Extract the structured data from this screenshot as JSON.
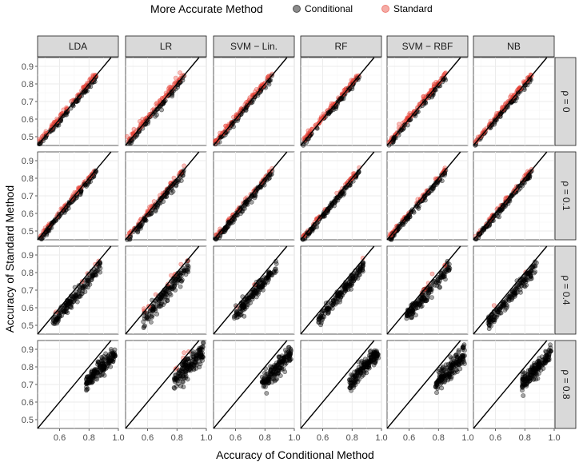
{
  "chart_data": {
    "type": "scatter",
    "xlabel": "Accuracy of Conditional Method",
    "ylabel": "Accuracy of Standard Method",
    "legend": {
      "title": "More Accurate Method",
      "position": "top",
      "entries": [
        {
          "label": "Conditional",
          "color": "#000000"
        },
        {
          "label": "Standard",
          "color": "#e8463a"
        }
      ]
    },
    "columns": [
      "LDA",
      "LR",
      "SVM − Lin.",
      "RF",
      "SVM − RBF",
      "NB"
    ],
    "rows": [
      "ρ = 0",
      "ρ = 0.1",
      "ρ = 0.4",
      "ρ = 0.8"
    ],
    "xlim": [
      0.45,
      1.0
    ],
    "ylim": [
      0.45,
      0.95
    ],
    "xticks": [
      0.6,
      0.8,
      1.0
    ],
    "xtick_labels": [
      "0.6",
      "0.8",
      "1.0"
    ],
    "yticks": [
      0.5,
      0.6,
      0.7,
      0.8,
      0.9
    ],
    "ytick_labels": [
      "0.5",
      "0.6",
      "0.7",
      "0.8",
      "0.9"
    ],
    "reference_line": "y = x",
    "grid": true,
    "approx_clusters": {
      "rho_0": {
        "x_range": [
          0.46,
          0.85
        ],
        "y_offset_mean": 0.0,
        "red_fraction": 0.5
      },
      "rho_0.1": {
        "x_range": [
          0.46,
          0.85
        ],
        "y_offset_mean": -0.01,
        "red_fraction": 0.5
      },
      "rho_0.4": {
        "x_range": [
          0.55,
          0.88
        ],
        "y_offset_mean": -0.04,
        "red_fraction": 0.08
      },
      "rho_0.8": {
        "x_range": [
          0.75,
          1.0
        ],
        "y_offset_mean": -0.1,
        "red_fraction": 0.02
      }
    }
  },
  "colors": {
    "strip_fill": "#d9d9d9",
    "panel_bg": "#ffffff",
    "grid_major": "#ebebeb",
    "grid_minor": "#f5f5f5",
    "conditional": "#000000",
    "standard": "#e8463a"
  }
}
